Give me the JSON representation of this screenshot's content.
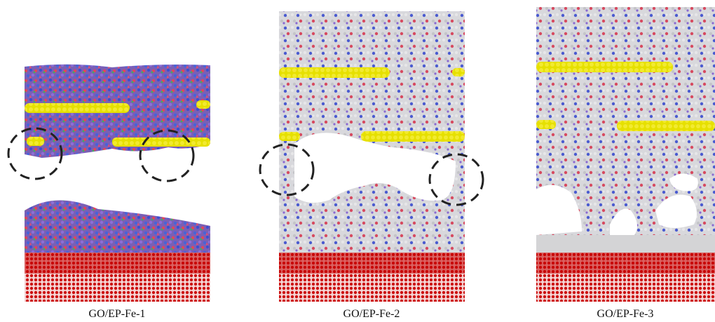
{
  "panels": [
    {
      "label": "GO/EP-Fe-1"
    },
    {
      "label": "GO/EP-Fe-2"
    },
    {
      "label": "GO/EP-Fe-3"
    }
  ]
}
